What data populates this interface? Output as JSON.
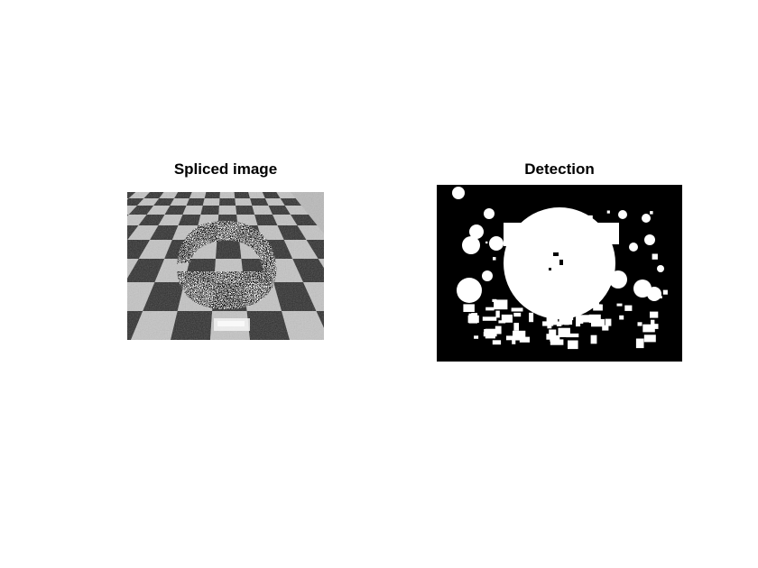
{
  "figure": {
    "panels": [
      {
        "title": "Spliced image"
      },
      {
        "title": "Detection"
      }
    ]
  }
}
